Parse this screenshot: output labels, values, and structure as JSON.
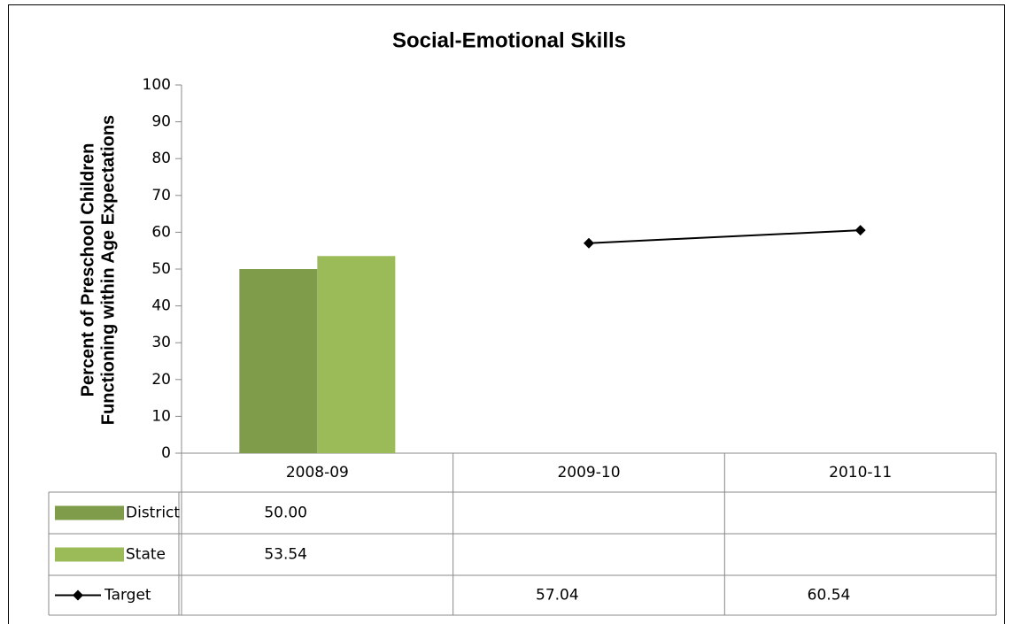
{
  "chart_data": {
    "type": "bar",
    "title": "Social-Emotional Skills",
    "y_label": [
      "Percent of Preschool Children",
      "Functioning within Age Expectations"
    ],
    "categories": [
      "2008-09",
      "2009-10",
      "2010-11"
    ],
    "series": [
      {
        "name": "District",
        "type": "bar",
        "color": "#7f9c4a",
        "values": [
          50,
          null,
          null
        ],
        "value_labels": [
          "50.00",
          null,
          null
        ]
      },
      {
        "name": "State",
        "type": "bar",
        "color": "#9bbb59",
        "values": [
          53.54,
          null,
          null
        ]
      },
      {
        "name": "Target",
        "type": "line",
        "color": "#000000",
        "values": [
          null,
          57.04,
          60.54
        ]
      }
    ],
    "ylim": [
      0,
      100
    ],
    "yticks": [
      0,
      10,
      20,
      30,
      40,
      50,
      60,
      70,
      80,
      90,
      100
    ]
  }
}
